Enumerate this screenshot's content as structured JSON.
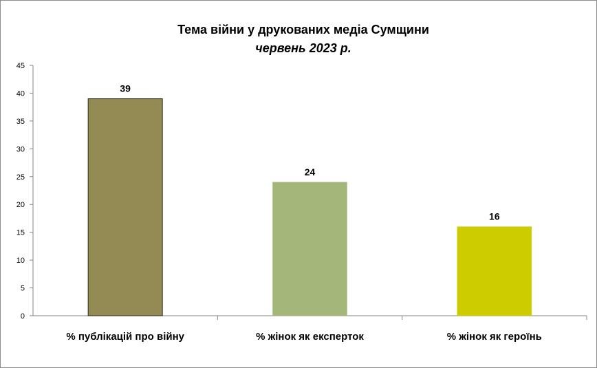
{
  "chart_data": {
    "type": "bar",
    "title": "Тема війни у друкованих  медіа Сумщини",
    "subtitle": "червень 2023 р.",
    "xlabel": "",
    "ylabel": "",
    "categories": [
      "% публікацій про війну",
      "% жінок як експерток",
      "% жінок як героїнь"
    ],
    "values": [
      39,
      24,
      16
    ],
    "data_labels": [
      "39",
      "24",
      "16"
    ],
    "colors": [
      "#948a54",
      "#a4b679",
      "#cccc00"
    ],
    "ylim": [
      0,
      45
    ],
    "yticks": [
      "0",
      "5",
      "10",
      "15",
      "20",
      "25",
      "30",
      "35",
      "40",
      "45"
    ],
    "grid": false,
    "legend": "none"
  }
}
